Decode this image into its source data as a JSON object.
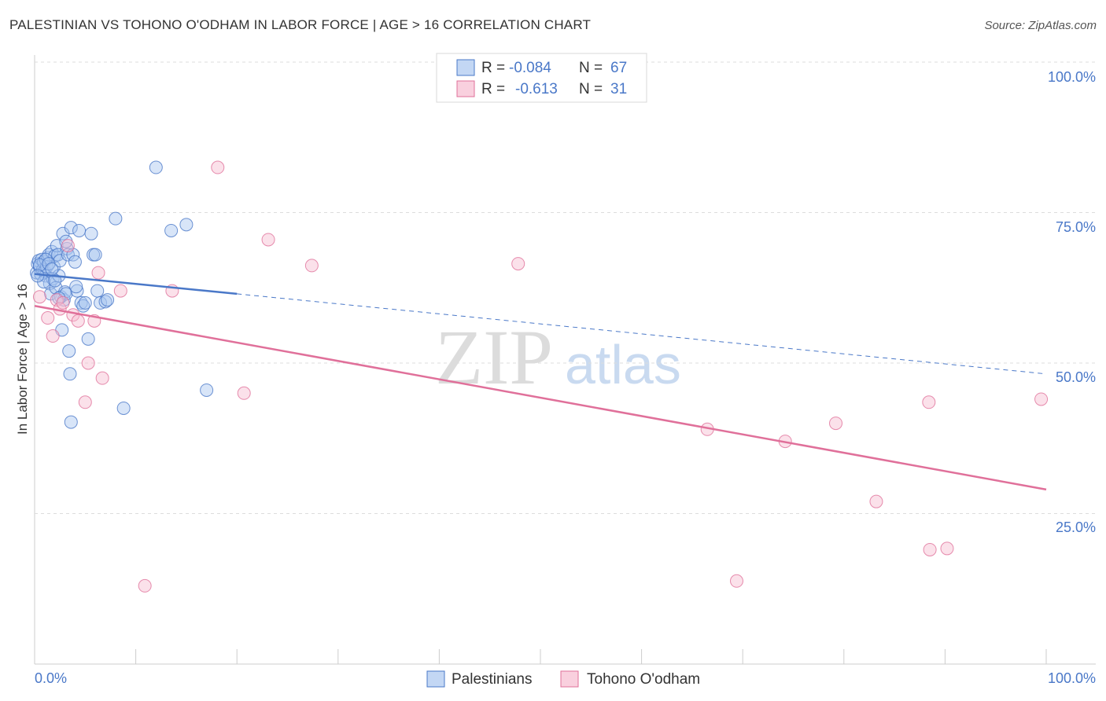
{
  "header": {
    "title": "PALESTINIAN VS TOHONO O'ODHAM IN LABOR FORCE | AGE > 16 CORRELATION CHART",
    "source": "Source: ZipAtlas.com"
  },
  "watermark": {
    "zip": "ZIP",
    "atlas": "atlas"
  },
  "chart_data": {
    "type": "scatter",
    "title": "PALESTINIAN VS TOHONO O'ODHAM IN LABOR FORCE | AGE > 16 CORRELATION CHART",
    "xlabel": "",
    "ylabel": "In Labor Force | Age > 16",
    "xlim": [
      0,
      100
    ],
    "ylim": [
      0,
      100
    ],
    "x_tick_labels": [
      "0.0%",
      "100.0%"
    ],
    "y_ticks": [
      25,
      50,
      75,
      100
    ],
    "y_tick_labels": [
      "25.0%",
      "50.0%",
      "75.0%",
      "100.0%"
    ],
    "legend_position": "top-center",
    "series": [
      {
        "name": "Palestinians",
        "color": "#4a78c8",
        "fill": "#a9c6f0",
        "legend_r_label": "R =",
        "legend_r": "-0.084",
        "legend_n_label": "N =",
        "legend_n": "67",
        "trend": {
          "x0": 0,
          "y0": 64.8,
          "x1": 20,
          "y1": 61.5,
          "x_dash_end": 100,
          "y_dash_end": 48.2
        },
        "points": [
          [
            0.2,
            65
          ],
          [
            0.3,
            66.5
          ],
          [
            0.4,
            67
          ],
          [
            0.5,
            66
          ],
          [
            0.6,
            64.8
          ],
          [
            0.7,
            67.2
          ],
          [
            0.8,
            65.5
          ],
          [
            0.9,
            66.8
          ],
          [
            1.0,
            65.2
          ],
          [
            1.1,
            64.5
          ],
          [
            1.2,
            66
          ],
          [
            1.3,
            67.5
          ],
          [
            1.4,
            68
          ],
          [
            1.5,
            63.2
          ],
          [
            1.6,
            61.5
          ],
          [
            1.7,
            68.5
          ],
          [
            1.8,
            64
          ],
          [
            1.9,
            66
          ],
          [
            2.0,
            67.8
          ],
          [
            2.1,
            62.5
          ],
          [
            2.2,
            69.5
          ],
          [
            2.3,
            68
          ],
          [
            2.4,
            64.5
          ],
          [
            2.5,
            67
          ],
          [
            2.6,
            61
          ],
          [
            2.7,
            55.5
          ],
          [
            2.8,
            71.5
          ],
          [
            2.9,
            60.5
          ],
          [
            3.0,
            61.8
          ],
          [
            3.1,
            61.5
          ],
          [
            3.2,
            69
          ],
          [
            3.3,
            68
          ],
          [
            3.4,
            52
          ],
          [
            3.5,
            48.2
          ],
          [
            3.6,
            72.5
          ],
          [
            3.8,
            68
          ],
          [
            4.0,
            66.8
          ],
          [
            4.2,
            62
          ],
          [
            4.4,
            72
          ],
          [
            4.6,
            60
          ],
          [
            4.8,
            59.5
          ],
          [
            5.0,
            60
          ],
          [
            5.3,
            54
          ],
          [
            5.6,
            71.5
          ],
          [
            5.8,
            68
          ],
          [
            6.0,
            68
          ],
          [
            6.2,
            62
          ],
          [
            6.5,
            60
          ],
          [
            7.0,
            60.2
          ],
          [
            7.2,
            60.5
          ],
          [
            8.0,
            74
          ],
          [
            8.8,
            42.5
          ],
          [
            12.0,
            82.5
          ],
          [
            13.5,
            72
          ],
          [
            15.0,
            73
          ],
          [
            17.0,
            45.5
          ],
          [
            1.1,
            67.2
          ],
          [
            0.5,
            66.3
          ],
          [
            0.9,
            63.5
          ],
          [
            0.3,
            64.5
          ],
          [
            2.0,
            63.7
          ],
          [
            1.4,
            66.5
          ],
          [
            3.1,
            70.2
          ],
          [
            2.4,
            60.8
          ],
          [
            3.6,
            40.2
          ],
          [
            4.1,
            62.7
          ],
          [
            1.7,
            65.6
          ]
        ]
      },
      {
        "name": "Tohono O'odham",
        "color": "#e0709a",
        "fill": "#f7bcd0",
        "legend_r_label": "R =",
        "legend_r": "-0.613",
        "legend_n_label": "N =",
        "legend_n": "31",
        "trend": {
          "x0": 0,
          "y0": 59.5,
          "x1": 100,
          "y1": 29
        },
        "points": [
          [
            0.5,
            61
          ],
          [
            1.3,
            57.5
          ],
          [
            1.8,
            54.5
          ],
          [
            2.2,
            60.5
          ],
          [
            2.5,
            59
          ],
          [
            2.8,
            60
          ],
          [
            3.3,
            69.5
          ],
          [
            3.8,
            58
          ],
          [
            4.3,
            57
          ],
          [
            5.0,
            43.5
          ],
          [
            5.3,
            50
          ],
          [
            5.9,
            57
          ],
          [
            6.3,
            65
          ],
          [
            6.7,
            47.5
          ],
          [
            8.5,
            62
          ],
          [
            10.9,
            13
          ],
          [
            13.6,
            62
          ],
          [
            18.1,
            82.5
          ],
          [
            20.7,
            45
          ],
          [
            23.1,
            70.5
          ],
          [
            27.4,
            66.2
          ],
          [
            47.8,
            66.5
          ],
          [
            66.5,
            39
          ],
          [
            69.4,
            13.8
          ],
          [
            74.2,
            37
          ],
          [
            79.2,
            40
          ],
          [
            83.2,
            27
          ],
          [
            88.5,
            19
          ],
          [
            88.4,
            43.5
          ],
          [
            90.2,
            19.2
          ],
          [
            99.5,
            44
          ]
        ]
      }
    ]
  }
}
